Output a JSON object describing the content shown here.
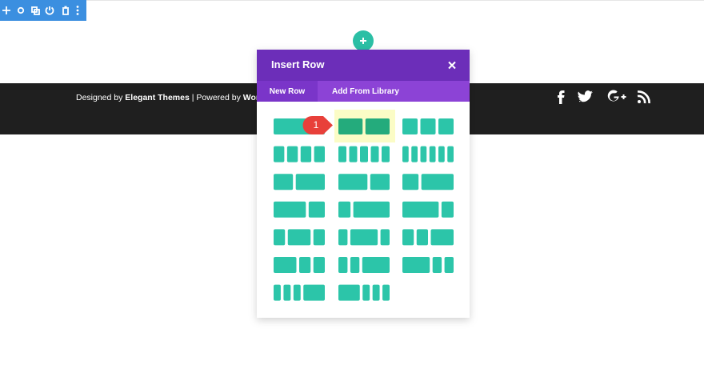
{
  "footer": {
    "text_parts": [
      "Designed by ",
      "Elegant Themes",
      " | Powered by ",
      "WordPress"
    ]
  },
  "modal": {
    "title": "Insert Row",
    "tabs": [
      "New Row",
      "Add From Library"
    ],
    "marker": "1"
  }
}
